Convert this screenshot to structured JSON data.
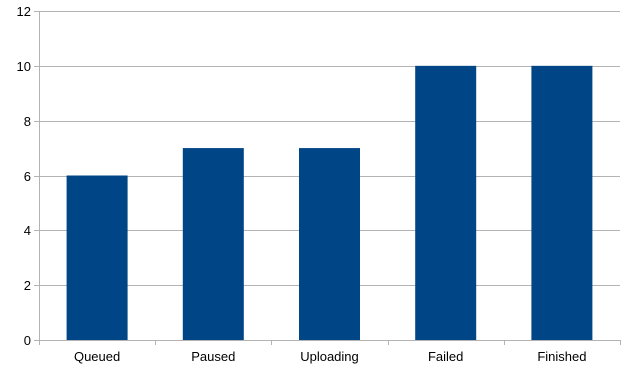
{
  "chart_data": {
    "type": "bar",
    "categories": [
      "Queued",
      "Paused",
      "Uploading",
      "Failed",
      "Finished"
    ],
    "series": [
      {
        "values": [
          6,
          7,
          7,
          10,
          10
        ]
      }
    ],
    "title": "",
    "xlabel": "",
    "ylabel": "",
    "ylim": [
      0,
      12
    ],
    "yticks": [
      "0",
      "2",
      "4",
      "6",
      "8",
      "10",
      "12"
    ],
    "grid": true,
    "legend": "none",
    "colors": {
      "bar": "#004586",
      "grid": "#b3b3b3",
      "axis": "#b3b3b3",
      "text": "#000000"
    }
  }
}
